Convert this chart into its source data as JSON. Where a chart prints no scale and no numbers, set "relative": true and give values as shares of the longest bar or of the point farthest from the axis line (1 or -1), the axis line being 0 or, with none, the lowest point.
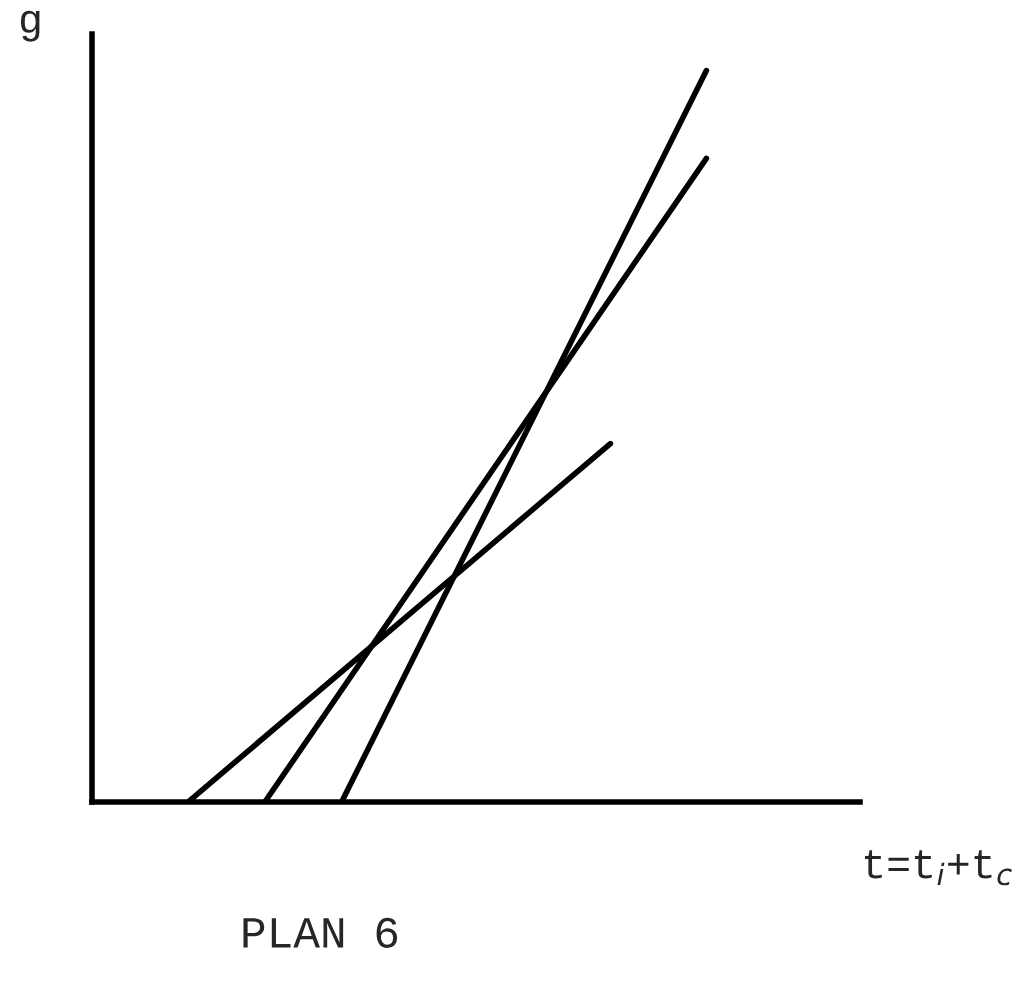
{
  "chart_data": {
    "type": "line",
    "relative": true,
    "ylabel": "g",
    "xlabel": "t=t$_{i}$+t$_{c}$",
    "annotations": [
      "PLAN 6"
    ],
    "categories": [
      null,
      null,
      null,
      null,
      null,
      null,
      null,
      null,
      null,
      null,
      null,
      null,
      null,
      null,
      null,
      null,
      null,
      null,
      null,
      null,
      null,
      null,
      null,
      null,
      null,
      null,
      null,
      null,
      null,
      null,
      null,
      null,
      null,
      null,
      null,
      null,
      null,
      null,
      null,
      null,
      null
    ],
    "series": [
      {
        "color": "#000000",
        "values": [
          null,
          null,
          null,
          null,
          null,
          0,
          null,
          null,
          null,
          null,
          null,
          null,
          null,
          null,
          null,
          null,
          null,
          null,
          null,
          null,
          null,
          null,
          null,
          null,
          null,
          null,
          null,
          0.49,
          null,
          null,
          null,
          null,
          null,
          null,
          null,
          null,
          null,
          null,
          null,
          null,
          null
        ]
      },
      {
        "color": "#000000",
        "values": [
          null,
          null,
          null,
          null,
          null,
          null,
          null,
          null,
          null,
          0,
          null,
          null,
          null,
          null,
          null,
          null,
          null,
          null,
          null,
          null,
          null,
          null,
          null,
          null,
          null,
          null,
          null,
          null,
          null,
          null,
          null,
          null,
          0.88,
          null,
          null,
          null,
          null,
          null,
          null,
          null,
          null
        ]
      },
      {
        "color": "#000000",
        "values": [
          null,
          null,
          null,
          null,
          null,
          null,
          null,
          null,
          null,
          null,
          null,
          null,
          null,
          0,
          null,
          null,
          null,
          null,
          null,
          null,
          null,
          null,
          null,
          null,
          null,
          null,
          null,
          null,
          null,
          null,
          null,
          null,
          1,
          null,
          null,
          null,
          null,
          null,
          null,
          null,
          null
        ]
      }
    ]
  }
}
